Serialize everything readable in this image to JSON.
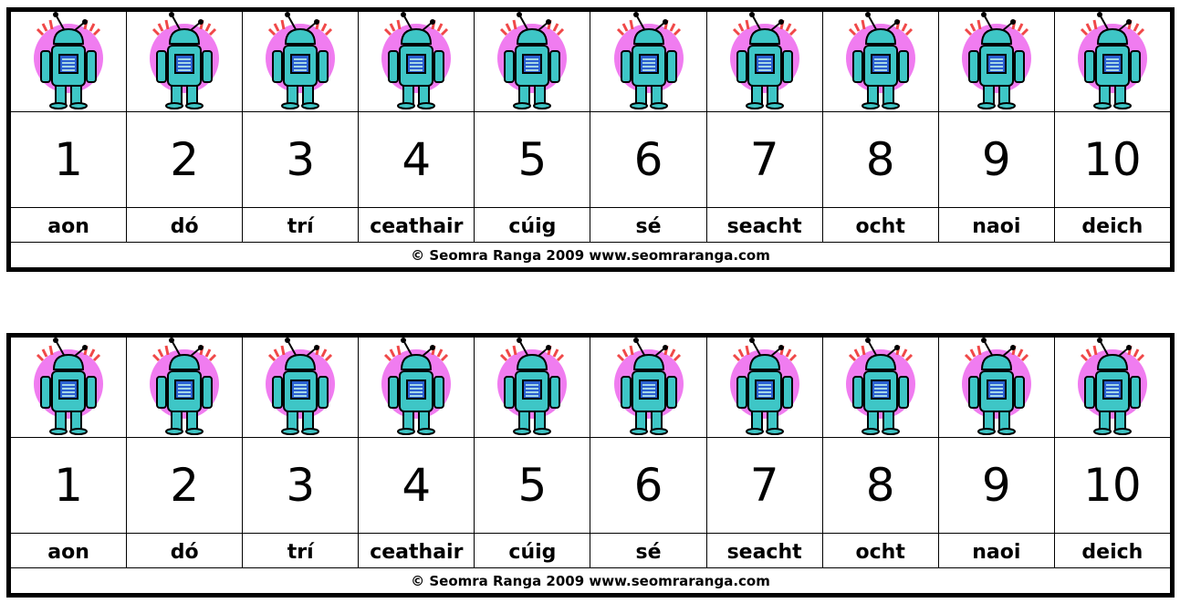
{
  "strips": [
    {
      "numbers": [
        "1",
        "2",
        "3",
        "4",
        "5",
        "6",
        "7",
        "8",
        "9",
        "10"
      ],
      "words": [
        "aon",
        "dó",
        "trí",
        "ceathair",
        "cúig",
        "sé",
        "seacht",
        "ocht",
        "naoi",
        "deich"
      ],
      "footer": "© Seomra Ranga 2009 www.seomraranga.com"
    },
    {
      "numbers": [
        "1",
        "2",
        "3",
        "4",
        "5",
        "6",
        "7",
        "8",
        "9",
        "10"
      ],
      "words": [
        "aon",
        "dó",
        "trí",
        "ceathair",
        "cúig",
        "sé",
        "seacht",
        "ocht",
        "naoi",
        "deich"
      ],
      "footer": "© Seomra Ranga 2009 www.seomraranga.com"
    }
  ],
  "icon": "robot-icon",
  "colors": {
    "robot_body": "#3ec6c6",
    "robot_halo": "#f07cf0",
    "robot_rays": "#f04848",
    "border": "#000000"
  }
}
